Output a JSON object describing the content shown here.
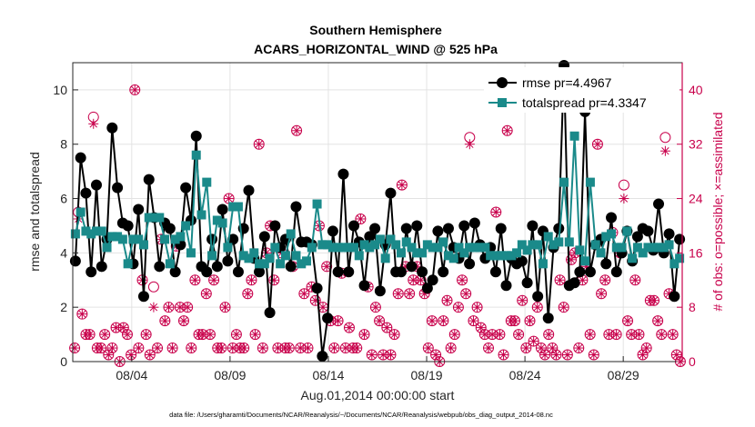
{
  "chart_data": {
    "type": "line",
    "title": "Southern Hemisphere",
    "subtitle": "ACARS_HORIZONTAL_WIND @ 525 hPa",
    "xlabel": "Aug.01,2014 00:00:00 start",
    "ylabel": "rmse and totalspread",
    "ylabel_right": "# of obs: o=possible; ×=assimilated",
    "xlim": [
      1,
      32
    ],
    "ylim": [
      0,
      11
    ],
    "ylim_right": [
      0,
      44
    ],
    "x_tick_labels": [
      "08/04",
      "08/09",
      "08/14",
      "08/19",
      "08/24",
      "08/29"
    ],
    "x_tick_days": [
      4,
      9,
      14,
      19,
      24,
      29
    ],
    "y_ticks": [
      0,
      2,
      4,
      6,
      8,
      10
    ],
    "y_ticks_right": [
      0,
      8,
      16,
      24,
      32,
      40
    ],
    "footnote": "data file: /Users/gharamti/Documents/NCAR/Reanalysis/~/Documents/NCAR/Reanalysis/webpub/obs_diag_output_2014-08.nc",
    "colors": {
      "rmse": "#000000",
      "totalspread": "#1a8a8a",
      "obs": "#c8004b",
      "grid": "#e3e3e3"
    },
    "series": [
      {
        "name": "rmse",
        "legend": "rmse pr=4.4967",
        "values": [
          3.7,
          7.5,
          6.2,
          3.3,
          6.5,
          3.5,
          4.5,
          8.6,
          6.4,
          5.1,
          5.0,
          3.6,
          5.6,
          2.4,
          6.7,
          5.3,
          3.5,
          5.1,
          4.9,
          3.3,
          4.3,
          6.4,
          5.2,
          8.3,
          3.5,
          3.3,
          4.5,
          3.5,
          5.6,
          3.7,
          4.5,
          3.3,
          4.9,
          6.3,
          3.8,
          3.3,
          4.6,
          1.8,
          5.0,
          4.2,
          4.5,
          3.5,
          5.7,
          4.4,
          4.4,
          4.3,
          2.7,
          0.2,
          1.6,
          4.8,
          3.3,
          6.9,
          3.3,
          5.0,
          4.4,
          2.8,
          4.6,
          4.9,
          2.6,
          4.3,
          6.2,
          3.3,
          3.3,
          4.9,
          3.5,
          5.0,
          3.3,
          2.7,
          3.0,
          4.8,
          3.3,
          4.9,
          4.2,
          3.8,
          5.0,
          3.6,
          5.1,
          4.3,
          3.8,
          4.2,
          3.3,
          4.9,
          2.8,
          3.8,
          3.6,
          3.7,
          2.9,
          5.0,
          2.4,
          4.8,
          1.6,
          4.2,
          4.9,
          10.9,
          2.8,
          2.9,
          3.3,
          9.2,
          3.3,
          4.3,
          4.5,
          3.6,
          5.3,
          3.3,
          4.0,
          4.8,
          3.7,
          4.6,
          4.9,
          4.8,
          4.1,
          5.8,
          4.0,
          4.7,
          2.4,
          4.5
        ]
      },
      {
        "name": "totalspread",
        "legend": "totalspread pr=4.3347",
        "values": [
          4.7,
          5.5,
          4.8,
          4.7,
          4.8,
          4.8,
          4.2,
          4.6,
          4.6,
          4.5,
          3.6,
          4.5,
          4.5,
          4.3,
          5.3,
          5.3,
          5.3,
          4.5,
          3.6,
          4.5,
          4.6,
          5.0,
          4.0,
          7.6,
          5.4,
          6.6,
          3.9,
          5.2,
          5.1,
          4.2,
          5.7,
          5.7,
          3.9,
          3.8,
          4.0,
          3.6,
          3.6,
          3.8,
          4.2,
          3.6,
          3.9,
          4.7,
          3.9,
          3.6,
          3.7,
          4.2,
          5.8,
          4.3,
          4.3,
          4.2,
          4.2,
          4.2,
          4.2,
          4.2,
          3.9,
          4.3,
          4.2,
          4.3,
          4.5,
          3.8,
          4.5,
          4.3,
          4.0,
          4.4,
          4.2,
          4.0,
          4.0,
          4.3,
          4.2,
          4.2,
          4.4,
          3.9,
          3.8,
          4.2,
          4.0,
          4.2,
          4.2,
          4.2,
          4.2,
          3.9,
          3.9,
          3.9,
          3.9,
          3.9,
          4.0,
          4.3,
          4.1,
          4.3,
          4.3,
          3.6,
          4.6,
          4.3,
          4.4,
          6.6,
          4.4,
          8.3,
          4.1,
          3.7,
          6.6,
          4.3,
          4.0,
          4.6,
          4.7,
          4.2,
          4.2,
          4.8,
          3.8,
          4.2,
          4.0,
          4.2,
          4.2,
          4.2,
          4.2,
          4.3,
          3.6,
          3.8
        ]
      },
      {
        "name": "possible",
        "axis": "right",
        "values": [
          2,
          22,
          7,
          4,
          4,
          36,
          2,
          2,
          4,
          1,
          2,
          5,
          0,
          5,
          4,
          1,
          40,
          2,
          12,
          4,
          1,
          11,
          2,
          18,
          6,
          8,
          2,
          17,
          8,
          6,
          8,
          2,
          12,
          4,
          4,
          10,
          4,
          12,
          2,
          2,
          8,
          24,
          2,
          4,
          2,
          2,
          10,
          12,
          4,
          32,
          2,
          16,
          20,
          12,
          2,
          16,
          2,
          2,
          14,
          34,
          2,
          10,
          2,
          11,
          9,
          20,
          8,
          14,
          6,
          2,
          6,
          13,
          2,
          5,
          2,
          2,
          21,
          4,
          11,
          1,
          8,
          6,
          1,
          5,
          1,
          4,
          10,
          26,
          14,
          10,
          12,
          14,
          12,
          10,
          2,
          6,
          1,
          0,
          6,
          9,
          2,
          4,
          8,
          12,
          10,
          33,
          6,
          8,
          5,
          4,
          2,
          4,
          22,
          4,
          1,
          34,
          6,
          6,
          4,
          9,
          2,
          6,
          3,
          8,
          2,
          1,
          4,
          2,
          1,
          12,
          8,
          1,
          15,
          16,
          2,
          12,
          14,
          4,
          1,
          32,
          10,
          12,
          4,
          19,
          4,
          16,
          26,
          6,
          4,
          12,
          4,
          1,
          2,
          9,
          9,
          6,
          4,
          33,
          10,
          4,
          1,
          0
        ]
      },
      {
        "name": "assimilated",
        "axis": "right",
        "values": [
          2,
          21,
          7,
          4,
          4,
          35,
          2,
          2,
          4,
          1,
          2,
          5,
          0,
          5,
          4,
          1,
          40,
          2,
          12,
          4,
          1,
          8,
          2,
          18,
          6,
          8,
          2,
          17,
          8,
          6,
          8,
          2,
          12,
          4,
          4,
          10,
          4,
          12,
          2,
          2,
          8,
          24,
          2,
          4,
          2,
          2,
          10,
          12,
          4,
          32,
          2,
          16,
          20,
          12,
          2,
          16,
          2,
          2,
          14,
          34,
          2,
          10,
          2,
          11,
          9,
          20,
          8,
          14,
          6,
          2,
          6,
          13,
          2,
          5,
          2,
          2,
          21,
          4,
          11,
          1,
          8,
          6,
          1,
          5,
          1,
          4,
          10,
          26,
          14,
          10,
          12,
          14,
          12,
          10,
          2,
          6,
          1,
          0,
          6,
          9,
          2,
          4,
          8,
          12,
          10,
          32,
          6,
          8,
          5,
          4,
          2,
          4,
          22,
          4,
          1,
          34,
          6,
          6,
          4,
          9,
          2,
          6,
          3,
          8,
          2,
          1,
          4,
          2,
          1,
          12,
          8,
          1,
          15,
          16,
          2,
          12,
          14,
          4,
          1,
          32,
          10,
          12,
          4,
          19,
          4,
          16,
          24,
          6,
          4,
          12,
          4,
          1,
          2,
          9,
          9,
          6,
          4,
          31,
          10,
          4,
          1,
          0
        ]
      }
    ]
  }
}
